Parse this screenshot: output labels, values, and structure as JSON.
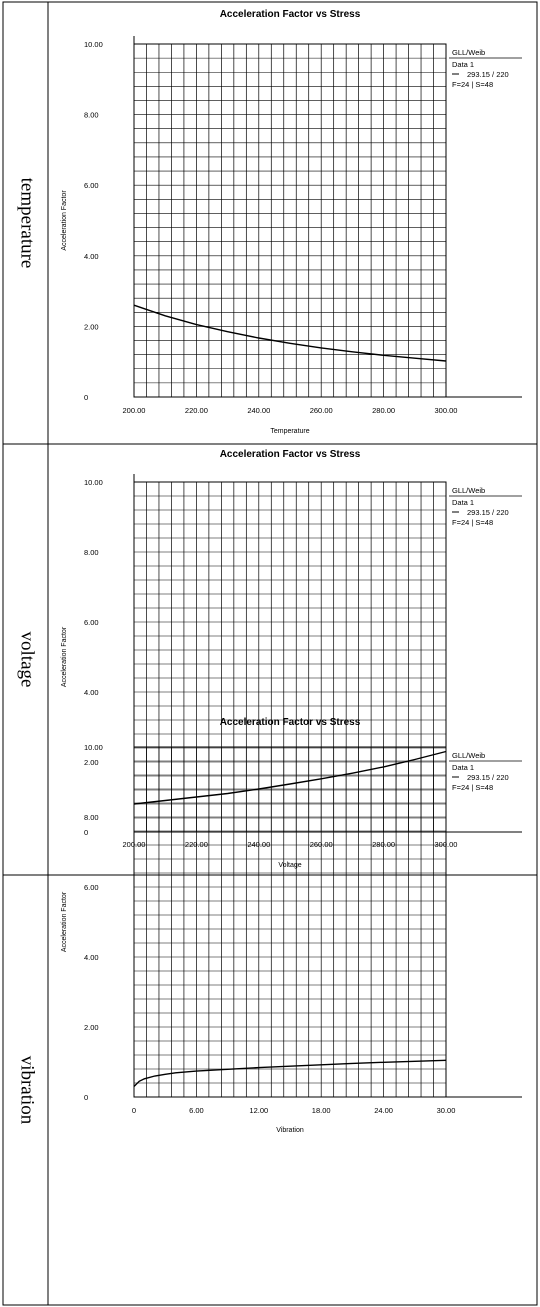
{
  "chart_data": [
    {
      "type": "line",
      "row_label": "temperature",
      "title": "Acceleration Factor vs Stress",
      "xlabel": "Temperature",
      "ylabel": "Acceleration Factor",
      "xlim": [
        200,
        300
      ],
      "ylim": [
        0,
        10
      ],
      "x_tick_labels": [
        "200.00",
        "220.00",
        "240.00",
        "260.00",
        "280.00",
        "300.00"
      ],
      "y_tick_labels": [
        "0",
        "2.00",
        "4.00",
        "6.00",
        "8.00",
        "10.00"
      ],
      "grid": true,
      "legend": {
        "placement": "top-right",
        "lines": [
          "GLL/Weib",
          "Data 1",
          "293.15 / 220",
          "F=24 | S=48"
        ]
      },
      "series": [
        {
          "x": [
            200,
            210,
            220,
            230,
            240,
            250,
            260,
            270,
            280,
            290,
            300
          ],
          "y": [
            2.6,
            2.3,
            2.05,
            1.85,
            1.67,
            1.52,
            1.39,
            1.28,
            1.18,
            1.1,
            1.02
          ]
        }
      ]
    },
    {
      "type": "line",
      "row_label": "voltage",
      "title": "Acceleration Factor vs Stress",
      "xlabel": "Voltage",
      "ylabel": "Acceleration Factor",
      "xlim": [
        200,
        300
      ],
      "ylim": [
        0,
        10
      ],
      "x_tick_labels": [
        "200.00",
        "220.00",
        "240.00",
        "260.00",
        "280.00",
        "300.00"
      ],
      "y_tick_labels": [
        "0",
        "2.00",
        "4.00",
        "6.00",
        "8.00",
        "10.00"
      ],
      "grid": true,
      "legend": {
        "placement": "top-right",
        "lines": [
          "GLL/Weib",
          "Data 1",
          "293.15 / 220",
          "F=24 | S=48"
        ]
      },
      "series": [
        {
          "x": [
            200,
            210,
            220,
            230,
            240,
            250,
            260,
            270,
            280,
            290,
            300
          ],
          "y": [
            0.8,
            0.9,
            1.0,
            1.1,
            1.23,
            1.37,
            1.52,
            1.68,
            1.86,
            2.07,
            2.3
          ]
        }
      ]
    },
    {
      "type": "line",
      "row_label": "vibration",
      "title": "Acceleration Factor vs Stress",
      "xlabel": "Vibration",
      "ylabel": "Acceleration Factor",
      "xlim": [
        0,
        30
      ],
      "ylim": [
        0,
        10
      ],
      "x_tick_labels": [
        "0",
        "6.00",
        "12.00",
        "18.00",
        "24.00",
        "30.00"
      ],
      "y_tick_labels": [
        "0",
        "2.00",
        "4.00",
        "6.00",
        "8.00",
        "10.00"
      ],
      "grid": true,
      "legend": {
        "placement": "top-right",
        "lines": [
          "GLL/Weib",
          "Data 1",
          "293.15 / 220",
          "F=24 | S=48"
        ]
      },
      "series": [
        {
          "x": [
            0,
            0.5,
            1,
            2,
            3,
            4,
            6,
            9,
            12,
            15,
            18,
            21,
            24,
            27,
            30
          ],
          "y": [
            0.3,
            0.45,
            0.52,
            0.6,
            0.65,
            0.69,
            0.74,
            0.79,
            0.84,
            0.88,
            0.92,
            0.96,
            0.99,
            1.02,
            1.05
          ]
        }
      ]
    }
  ]
}
